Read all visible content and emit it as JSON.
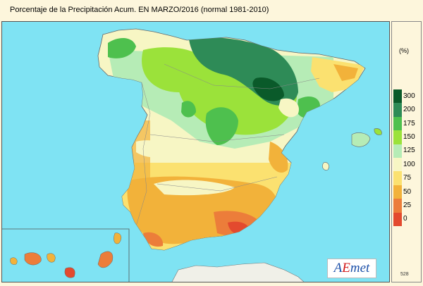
{
  "title": "Porcentaje de la Precipitación Acum. EN  MARZO/2016  (normal 1981-2010)",
  "legend": {
    "unit": "(%)",
    "classes": [
      {
        "label": "300",
        "color": "#0a5a2a"
      },
      {
        "label": "200",
        "color": "#2e8b57"
      },
      {
        "label": "175",
        "color": "#4ec04e"
      },
      {
        "label": "150",
        "color": "#9be23a"
      },
      {
        "label": "125",
        "color": "#b6ecb6"
      },
      {
        "label": "100",
        "color": "#f7f6c4"
      },
      {
        "label": "75",
        "color": "#fbe170"
      },
      {
        "label": "50",
        "color": "#f2b23a"
      },
      {
        "label": "25",
        "color": "#ec7d3a"
      },
      {
        "label": "0",
        "color": "#e34a2e"
      }
    ],
    "colors_order": "top-to-bottom"
  },
  "logo": {
    "a": "A",
    "e": "E",
    "rest": "met"
  },
  "map_code": "528",
  "colors": {
    "sea": "#7fe3f3",
    "background": "#fdf6dc"
  }
}
